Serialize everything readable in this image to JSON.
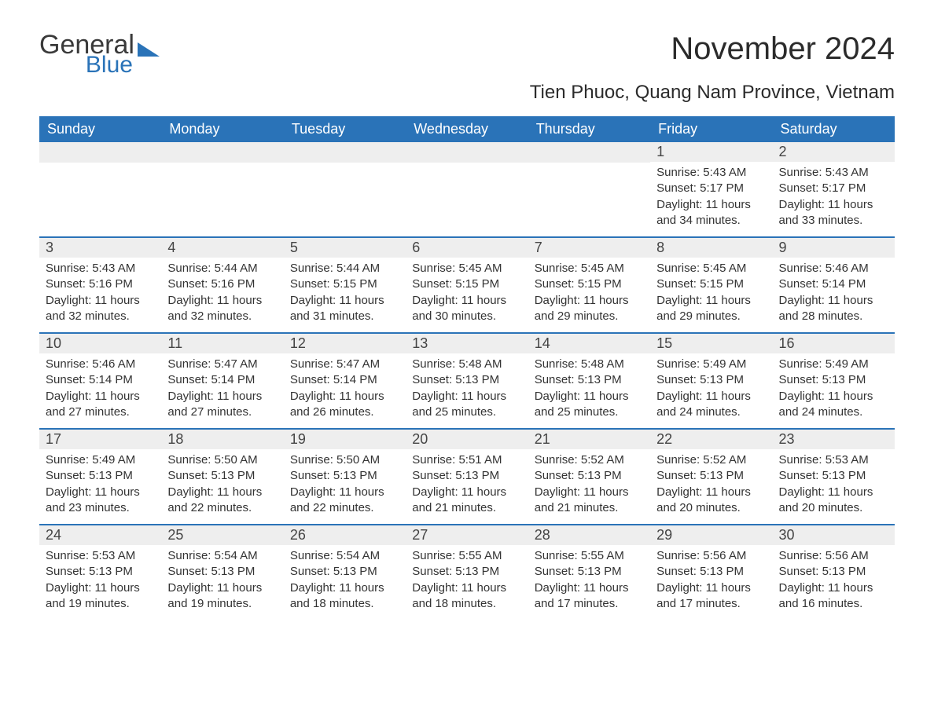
{
  "logo": {
    "general": "General",
    "blue": "Blue"
  },
  "title": "November 2024",
  "subtitle": "Tien Phuoc, Quang Nam Province, Vietnam",
  "colors": {
    "header_bg": "#2a73b8",
    "header_text": "#ffffff",
    "daynum_bg": "#eeeeee",
    "border": "#2a73b8",
    "text": "#333333",
    "page_bg": "#ffffff"
  },
  "fonts": {
    "title_size_pt": 30,
    "subtitle_size_pt": 18,
    "dow_size_pt": 14,
    "daynum_size_pt": 14,
    "body_size_pt": 11
  },
  "days_of_week": [
    "Sunday",
    "Monday",
    "Tuesday",
    "Wednesday",
    "Thursday",
    "Friday",
    "Saturday"
  ],
  "weeks": [
    [
      {
        "empty": true
      },
      {
        "empty": true
      },
      {
        "empty": true
      },
      {
        "empty": true
      },
      {
        "empty": true
      },
      {
        "num": "1",
        "sunrise": "Sunrise: 5:43 AM",
        "sunset": "Sunset: 5:17 PM",
        "daylight": "Daylight: 11 hours and 34 minutes."
      },
      {
        "num": "2",
        "sunrise": "Sunrise: 5:43 AM",
        "sunset": "Sunset: 5:17 PM",
        "daylight": "Daylight: 11 hours and 33 minutes."
      }
    ],
    [
      {
        "num": "3",
        "sunrise": "Sunrise: 5:43 AM",
        "sunset": "Sunset: 5:16 PM",
        "daylight": "Daylight: 11 hours and 32 minutes."
      },
      {
        "num": "4",
        "sunrise": "Sunrise: 5:44 AM",
        "sunset": "Sunset: 5:16 PM",
        "daylight": "Daylight: 11 hours and 32 minutes."
      },
      {
        "num": "5",
        "sunrise": "Sunrise: 5:44 AM",
        "sunset": "Sunset: 5:15 PM",
        "daylight": "Daylight: 11 hours and 31 minutes."
      },
      {
        "num": "6",
        "sunrise": "Sunrise: 5:45 AM",
        "sunset": "Sunset: 5:15 PM",
        "daylight": "Daylight: 11 hours and 30 minutes."
      },
      {
        "num": "7",
        "sunrise": "Sunrise: 5:45 AM",
        "sunset": "Sunset: 5:15 PM",
        "daylight": "Daylight: 11 hours and 29 minutes."
      },
      {
        "num": "8",
        "sunrise": "Sunrise: 5:45 AM",
        "sunset": "Sunset: 5:15 PM",
        "daylight": "Daylight: 11 hours and 29 minutes."
      },
      {
        "num": "9",
        "sunrise": "Sunrise: 5:46 AM",
        "sunset": "Sunset: 5:14 PM",
        "daylight": "Daylight: 11 hours and 28 minutes."
      }
    ],
    [
      {
        "num": "10",
        "sunrise": "Sunrise: 5:46 AM",
        "sunset": "Sunset: 5:14 PM",
        "daylight": "Daylight: 11 hours and 27 minutes."
      },
      {
        "num": "11",
        "sunrise": "Sunrise: 5:47 AM",
        "sunset": "Sunset: 5:14 PM",
        "daylight": "Daylight: 11 hours and 27 minutes."
      },
      {
        "num": "12",
        "sunrise": "Sunrise: 5:47 AM",
        "sunset": "Sunset: 5:14 PM",
        "daylight": "Daylight: 11 hours and 26 minutes."
      },
      {
        "num": "13",
        "sunrise": "Sunrise: 5:48 AM",
        "sunset": "Sunset: 5:13 PM",
        "daylight": "Daylight: 11 hours and 25 minutes."
      },
      {
        "num": "14",
        "sunrise": "Sunrise: 5:48 AM",
        "sunset": "Sunset: 5:13 PM",
        "daylight": "Daylight: 11 hours and 25 minutes."
      },
      {
        "num": "15",
        "sunrise": "Sunrise: 5:49 AM",
        "sunset": "Sunset: 5:13 PM",
        "daylight": "Daylight: 11 hours and 24 minutes."
      },
      {
        "num": "16",
        "sunrise": "Sunrise: 5:49 AM",
        "sunset": "Sunset: 5:13 PM",
        "daylight": "Daylight: 11 hours and 24 minutes."
      }
    ],
    [
      {
        "num": "17",
        "sunrise": "Sunrise: 5:49 AM",
        "sunset": "Sunset: 5:13 PM",
        "daylight": "Daylight: 11 hours and 23 minutes."
      },
      {
        "num": "18",
        "sunrise": "Sunrise: 5:50 AM",
        "sunset": "Sunset: 5:13 PM",
        "daylight": "Daylight: 11 hours and 22 minutes."
      },
      {
        "num": "19",
        "sunrise": "Sunrise: 5:50 AM",
        "sunset": "Sunset: 5:13 PM",
        "daylight": "Daylight: 11 hours and 22 minutes."
      },
      {
        "num": "20",
        "sunrise": "Sunrise: 5:51 AM",
        "sunset": "Sunset: 5:13 PM",
        "daylight": "Daylight: 11 hours and 21 minutes."
      },
      {
        "num": "21",
        "sunrise": "Sunrise: 5:52 AM",
        "sunset": "Sunset: 5:13 PM",
        "daylight": "Daylight: 11 hours and 21 minutes."
      },
      {
        "num": "22",
        "sunrise": "Sunrise: 5:52 AM",
        "sunset": "Sunset: 5:13 PM",
        "daylight": "Daylight: 11 hours and 20 minutes."
      },
      {
        "num": "23",
        "sunrise": "Sunrise: 5:53 AM",
        "sunset": "Sunset: 5:13 PM",
        "daylight": "Daylight: 11 hours and 20 minutes."
      }
    ],
    [
      {
        "num": "24",
        "sunrise": "Sunrise: 5:53 AM",
        "sunset": "Sunset: 5:13 PM",
        "daylight": "Daylight: 11 hours and 19 minutes."
      },
      {
        "num": "25",
        "sunrise": "Sunrise: 5:54 AM",
        "sunset": "Sunset: 5:13 PM",
        "daylight": "Daylight: 11 hours and 19 minutes."
      },
      {
        "num": "26",
        "sunrise": "Sunrise: 5:54 AM",
        "sunset": "Sunset: 5:13 PM",
        "daylight": "Daylight: 11 hours and 18 minutes."
      },
      {
        "num": "27",
        "sunrise": "Sunrise: 5:55 AM",
        "sunset": "Sunset: 5:13 PM",
        "daylight": "Daylight: 11 hours and 18 minutes."
      },
      {
        "num": "28",
        "sunrise": "Sunrise: 5:55 AM",
        "sunset": "Sunset: 5:13 PM",
        "daylight": "Daylight: 11 hours and 17 minutes."
      },
      {
        "num": "29",
        "sunrise": "Sunrise: 5:56 AM",
        "sunset": "Sunset: 5:13 PM",
        "daylight": "Daylight: 11 hours and 17 minutes."
      },
      {
        "num": "30",
        "sunrise": "Sunrise: 5:56 AM",
        "sunset": "Sunset: 5:13 PM",
        "daylight": "Daylight: 11 hours and 16 minutes."
      }
    ]
  ]
}
